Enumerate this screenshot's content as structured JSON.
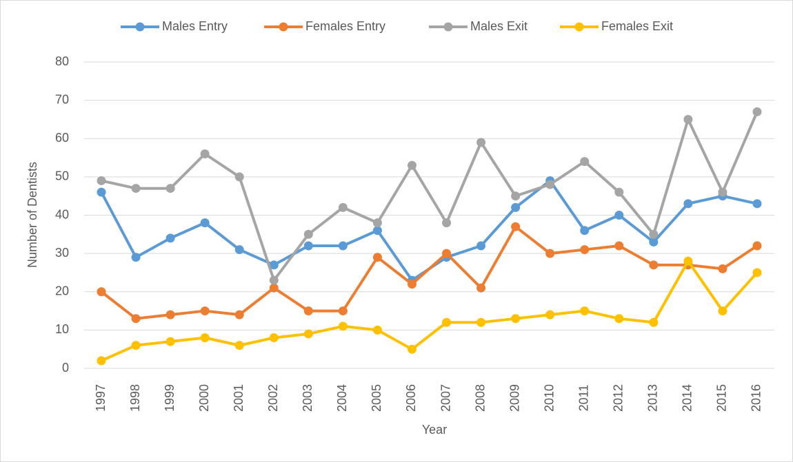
{
  "chart_data": {
    "type": "line",
    "categories": [
      "1997",
      "1998",
      "1999",
      "2000",
      "2001",
      "2002",
      "2003",
      "2004",
      "2005",
      "2006",
      "2007",
      "2008",
      "2009",
      "2010",
      "2011",
      "2012",
      "2013",
      "2014",
      "2015",
      "2016"
    ],
    "series": [
      {
        "name": "Males Entry",
        "color": "#5b9bd5",
        "values": [
          46,
          29,
          34,
          38,
          31,
          27,
          32,
          32,
          36,
          23,
          29,
          32,
          42,
          49,
          36,
          40,
          33,
          43,
          45,
          43
        ]
      },
      {
        "name": "Females Entry",
        "color": "#ed7d31",
        "values": [
          20,
          13,
          14,
          15,
          14,
          21,
          15,
          15,
          29,
          22,
          30,
          21,
          37,
          30,
          31,
          32,
          27,
          27,
          26,
          32
        ]
      },
      {
        "name": "Males Exit",
        "color": "#a5a5a5",
        "values": [
          49,
          47,
          47,
          56,
          50,
          23,
          35,
          42,
          38,
          53,
          38,
          59,
          45,
          48,
          54,
          46,
          35,
          65,
          46,
          67
        ]
      },
      {
        "name": "Females Exit",
        "color": "#ffc000",
        "values": [
          2,
          6,
          7,
          8,
          6,
          8,
          9,
          11,
          10,
          5,
          12,
          12,
          13,
          14,
          15,
          13,
          12,
          28,
          15,
          25
        ]
      }
    ],
    "x_label": "Year",
    "y_label": "Number of Dentists",
    "ylim": [
      0,
      80
    ],
    "yticks": [
      0,
      10,
      20,
      30,
      40,
      50,
      60,
      70,
      80
    ],
    "grid": true,
    "legend": "top"
  }
}
